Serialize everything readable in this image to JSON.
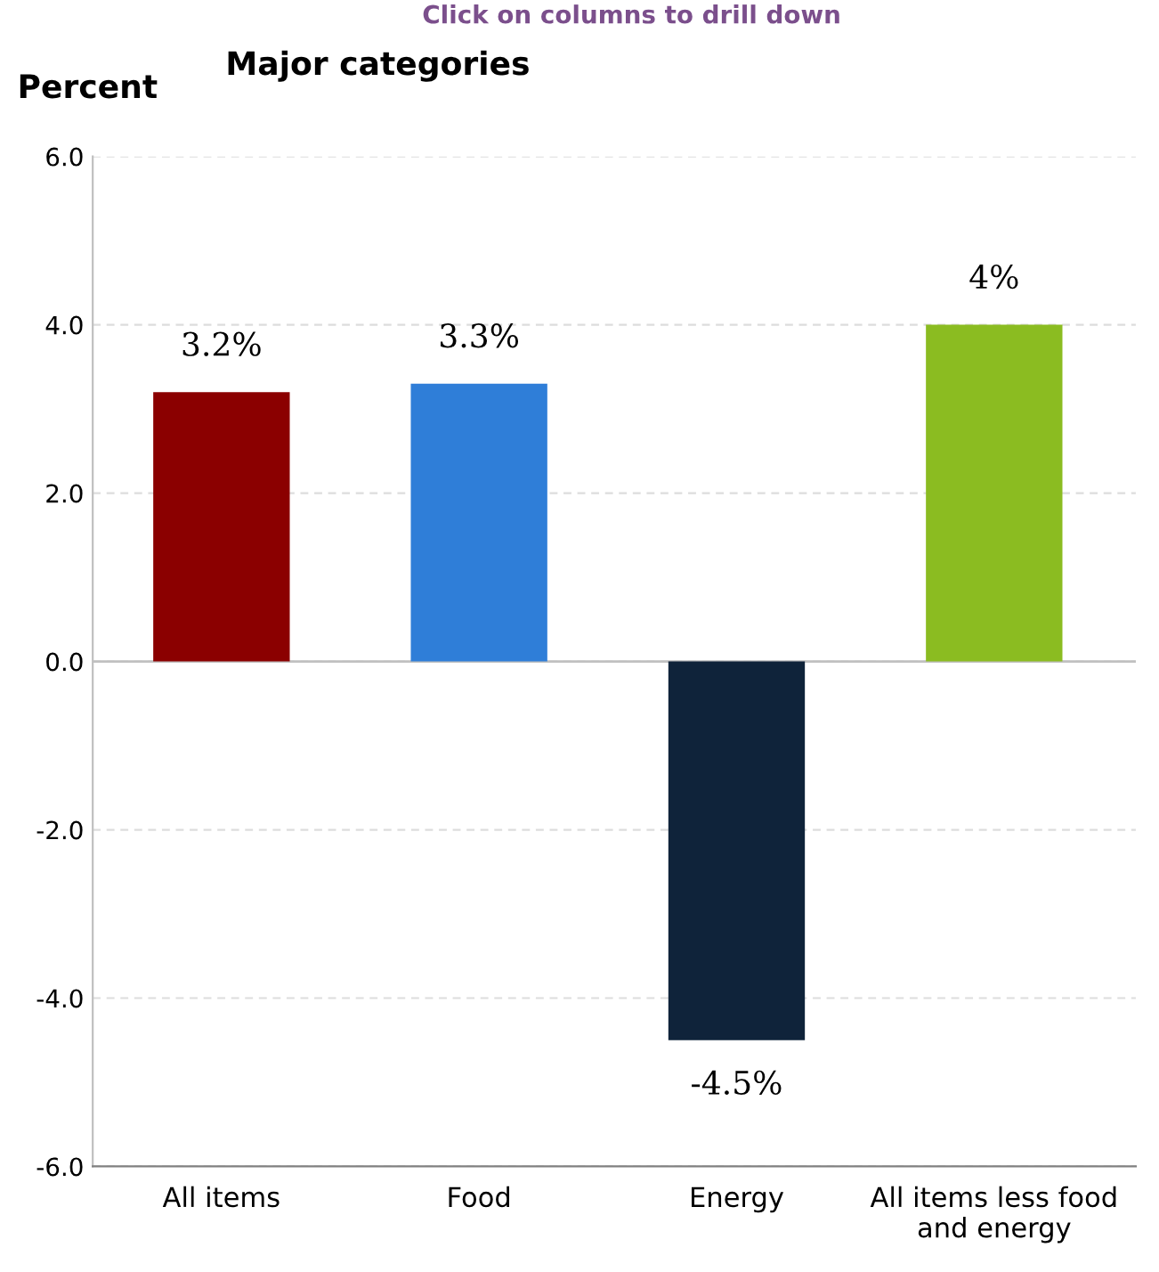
{
  "chart_data": {
    "type": "bar",
    "title": "Major categories",
    "ylabel": "Percent",
    "annotations": [
      "Click on columns to drill down"
    ],
    "categories": [
      "All items",
      "Food",
      "Energy",
      "All items less food and energy"
    ],
    "values": [
      3.2,
      3.3,
      -4.5,
      4.0
    ],
    "colors": [
      "#8b0000",
      "#2f7ed8",
      "#0f233a",
      "#8bbc21"
    ],
    "value_labels": [
      "3.2%",
      "3.3%",
      "-4.5%",
      "4%"
    ],
    "ylim": [
      -6,
      6
    ],
    "yticks": [
      {
        "value": -6,
        "label": "-6.0"
      },
      {
        "value": -4,
        "label": "-4.0"
      },
      {
        "value": -2,
        "label": "-2.0"
      },
      {
        "value": 0,
        "label": "0.0"
      },
      {
        "value": 2,
        "label": "2.0"
      },
      {
        "value": 4,
        "label": "4.0"
      },
      {
        "value": 6,
        "label": "6.0"
      }
    ],
    "ref_lines": [
      {
        "axis": "y",
        "value": 0,
        "color": "#c0c0c0"
      }
    ],
    "grid": "y"
  }
}
